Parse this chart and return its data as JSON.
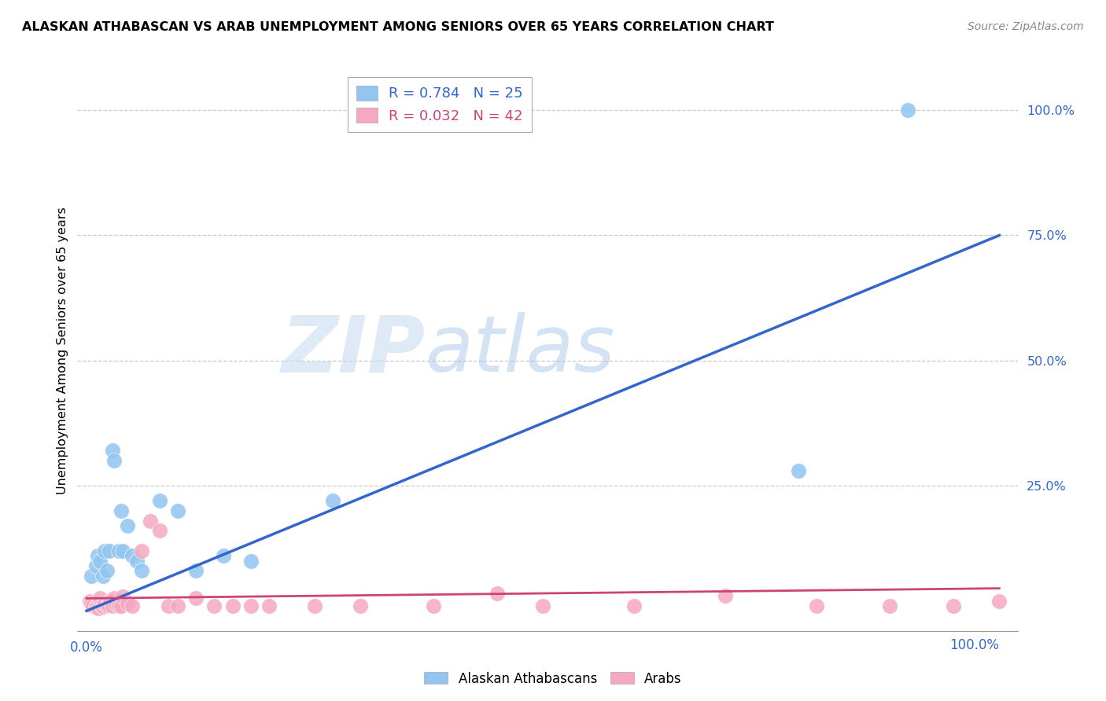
{
  "title": "ALASKAN ATHABASCAN VS ARAB UNEMPLOYMENT AMONG SENIORS OVER 65 YEARS CORRELATION CHART",
  "source": "Source: ZipAtlas.com",
  "ylabel": "Unemployment Among Seniors over 65 years",
  "ytick_labels": [
    "25.0%",
    "50.0%",
    "75.0%",
    "100.0%"
  ],
  "ytick_values": [
    0.25,
    0.5,
    0.75,
    1.0
  ],
  "xlim": [
    -0.01,
    1.02
  ],
  "ylim": [
    -0.04,
    1.08
  ],
  "legend1_label": "Alaskan Athabascans",
  "legend2_label": "Arabs",
  "R1": "0.784",
  "N1": "25",
  "R2": "0.032",
  "N2": "42",
  "blue_color": "#92C5F0",
  "pink_color": "#F5A8C0",
  "blue_line_color": "#3366CC",
  "pink_line_color": "#CC4477",
  "watermark_color": "#D8E8F5",
  "blue_scatter_x": [
    0.005,
    0.01,
    0.012,
    0.015,
    0.018,
    0.02,
    0.022,
    0.025,
    0.028,
    0.03,
    0.035,
    0.038,
    0.04,
    0.045,
    0.05,
    0.055,
    0.06,
    0.08,
    0.1,
    0.12,
    0.15,
    0.18,
    0.27,
    0.78,
    0.9
  ],
  "blue_scatter_y": [
    0.07,
    0.09,
    0.11,
    0.1,
    0.07,
    0.12,
    0.08,
    0.12,
    0.32,
    0.3,
    0.12,
    0.2,
    0.12,
    0.17,
    0.11,
    0.1,
    0.08,
    0.22,
    0.2,
    0.08,
    0.11,
    0.1,
    0.22,
    0.28,
    1.0
  ],
  "pink_scatter_x": [
    0.003,
    0.005,
    0.007,
    0.01,
    0.012,
    0.013,
    0.015,
    0.016,
    0.018,
    0.02,
    0.022,
    0.024,
    0.026,
    0.028,
    0.03,
    0.032,
    0.035,
    0.038,
    0.04,
    0.045,
    0.05,
    0.06,
    0.07,
    0.08,
    0.09,
    0.1,
    0.12,
    0.14,
    0.16,
    0.18,
    0.2,
    0.25,
    0.3,
    0.38,
    0.45,
    0.5,
    0.6,
    0.7,
    0.8,
    0.88,
    0.95,
    1.0
  ],
  "pink_scatter_y": [
    0.02,
    0.015,
    0.01,
    0.008,
    0.01,
    0.005,
    0.025,
    0.01,
    0.008,
    0.015,
    0.01,
    0.012,
    0.02,
    0.01,
    0.025,
    0.015,
    0.01,
    0.01,
    0.028,
    0.015,
    0.01,
    0.12,
    0.18,
    0.16,
    0.01,
    0.01,
    0.025,
    0.01,
    0.01,
    0.01,
    0.01,
    0.01,
    0.01,
    0.01,
    0.035,
    0.01,
    0.01,
    0.03,
    0.01,
    0.01,
    0.01,
    0.02
  ],
  "blue_trend_x": [
    0.0,
    1.0
  ],
  "blue_trend_y": [
    0.0,
    0.75
  ],
  "pink_trend_x": [
    0.0,
    1.0
  ],
  "pink_trend_y": [
    0.025,
    0.045
  ]
}
